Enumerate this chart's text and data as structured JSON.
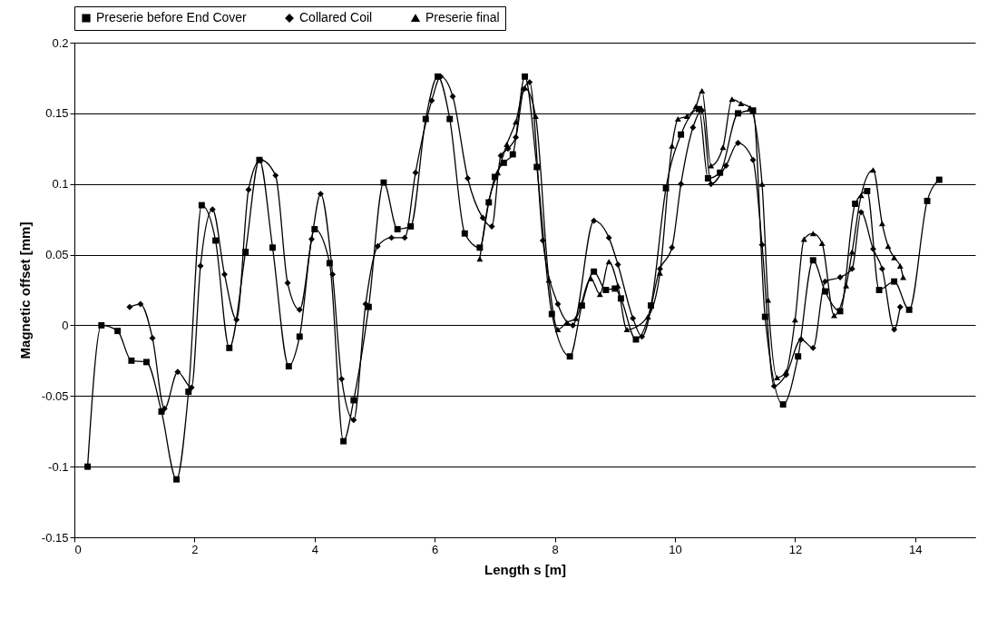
{
  "chart_data": {
    "type": "line",
    "xlabel": "Length s [m]",
    "ylabel": "Magnetic offset [mm]",
    "xlim": [
      0,
      15
    ],
    "xticks": [
      0,
      2,
      4,
      6,
      8,
      10,
      12,
      14
    ],
    "ylim": [
      -0.15,
      0.2
    ],
    "yticks": [
      -0.15,
      -0.1,
      -0.05,
      0,
      0.05,
      0.1,
      0.15,
      0.2
    ],
    "grid": "y",
    "legend": "top",
    "series": [
      {
        "name": "Preserie before End Cover",
        "color": "#000000",
        "marker": "square",
        "x": [
          0.22,
          0.45,
          0.72,
          0.95,
          1.2,
          1.45,
          1.7,
          1.9,
          2.12,
          2.35,
          2.58,
          2.85,
          3.08,
          3.3,
          3.57,
          3.75,
          4.0,
          4.25,
          4.48,
          4.65,
          4.9,
          5.15,
          5.38,
          5.6,
          5.85,
          6.05,
          6.25,
          6.5,
          6.75,
          6.9,
          7.0,
          7.15,
          7.3,
          7.5,
          7.7,
          7.95,
          8.25,
          8.45,
          8.65,
          8.85,
          9.0,
          9.1,
          9.35,
          9.6,
          9.85,
          10.1,
          10.4,
          10.55,
          10.75,
          11.05,
          11.3,
          11.5,
          11.8,
          12.05,
          12.3,
          12.5,
          12.75,
          13.0,
          13.2,
          13.4,
          13.65,
          13.9,
          14.2,
          14.4
        ],
        "values": [
          -0.1,
          0.0,
          -0.004,
          -0.025,
          -0.026,
          -0.061,
          -0.109,
          -0.047,
          0.085,
          0.06,
          -0.016,
          0.052,
          0.117,
          0.055,
          -0.029,
          -0.008,
          0.068,
          0.044,
          -0.082,
          -0.053,
          0.013,
          0.101,
          0.068,
          0.07,
          0.146,
          0.176,
          0.146,
          0.065,
          0.055,
          0.087,
          0.105,
          0.115,
          0.121,
          0.176,
          0.112,
          0.008,
          -0.022,
          0.014,
          0.038,
          0.025,
          0.026,
          0.019,
          -0.01,
          0.014,
          0.097,
          0.135,
          0.153,
          0.104,
          0.108,
          0.15,
          0.152,
          0.006,
          -0.056,
          -0.022,
          0.046,
          0.024,
          0.01,
          0.086,
          0.095,
          0.025,
          0.031,
          0.011,
          0.088,
          0.103
        ]
      },
      {
        "name": "Collared Coil",
        "color": "#000000",
        "marker": "diamond",
        "x": [
          0.92,
          1.1,
          1.3,
          1.5,
          1.72,
          1.95,
          2.1,
          2.3,
          2.5,
          2.7,
          2.9,
          3.1,
          3.35,
          3.55,
          3.75,
          3.95,
          4.1,
          4.3,
          4.45,
          4.65,
          4.85,
          5.05,
          5.28,
          5.5,
          5.68,
          5.95,
          6.1,
          6.3,
          6.55,
          6.8,
          6.95,
          7.1,
          7.22,
          7.35,
          7.48,
          7.58,
          7.8,
          8.05,
          8.3,
          8.65,
          8.9,
          9.05,
          9.3,
          9.45,
          9.75,
          9.95,
          10.1,
          10.3,
          10.45,
          10.6,
          10.85,
          11.05,
          11.3,
          11.45,
          11.65,
          11.85,
          12.1,
          12.3,
          12.5,
          12.75,
          12.95,
          13.1,
          13.3,
          13.45,
          13.65,
          13.75
        ],
        "values": [
          0.013,
          0.015,
          -0.009,
          -0.059,
          -0.033,
          -0.044,
          0.042,
          0.082,
          0.036,
          0.004,
          0.096,
          0.117,
          0.106,
          0.03,
          0.011,
          0.061,
          0.093,
          0.036,
          -0.038,
          -0.067,
          0.015,
          0.056,
          0.062,
          0.062,
          0.108,
          0.159,
          0.176,
          0.162,
          0.104,
          0.076,
          0.07,
          0.12,
          0.125,
          0.133,
          0.167,
          0.172,
          0.06,
          0.015,
          0.0,
          0.074,
          0.062,
          0.043,
          0.005,
          -0.008,
          0.04,
          0.055,
          0.1,
          0.14,
          0.152,
          0.1,
          0.113,
          0.129,
          0.117,
          0.057,
          -0.043,
          -0.035,
          -0.01,
          -0.016,
          0.031,
          0.034,
          0.04,
          0.08,
          0.054,
          0.04,
          -0.003,
          0.013
        ]
      },
      {
        "name": "Preserie final",
        "color": "#000000",
        "marker": "triangle",
        "x": [
          6.75,
          6.9,
          7.05,
          7.2,
          7.35,
          7.5,
          7.68,
          7.9,
          8.05,
          8.2,
          8.35,
          8.6,
          8.75,
          8.9,
          9.05,
          9.2,
          9.55,
          9.75,
          9.95,
          10.05,
          10.2,
          10.35,
          10.45,
          10.6,
          10.8,
          10.95,
          11.1,
          11.25,
          11.45,
          11.55,
          11.7,
          11.85,
          12.0,
          12.15,
          12.3,
          12.45,
          12.65,
          12.85,
          12.95,
          13.1,
          13.3,
          13.45,
          13.55,
          13.65,
          13.75,
          13.8
        ],
        "values": [
          0.047,
          0.088,
          0.108,
          0.128,
          0.144,
          0.168,
          0.148,
          0.032,
          -0.003,
          0.002,
          0.005,
          0.033,
          0.022,
          0.045,
          0.028,
          -0.003,
          0.006,
          0.037,
          0.127,
          0.146,
          0.148,
          0.155,
          0.166,
          0.113,
          0.126,
          0.16,
          0.157,
          0.154,
          0.1,
          0.018,
          -0.037,
          -0.033,
          0.004,
          0.061,
          0.065,
          0.058,
          0.007,
          0.028,
          0.052,
          0.092,
          0.11,
          0.072,
          0.056,
          0.048,
          0.042,
          0.034
        ]
      }
    ]
  }
}
